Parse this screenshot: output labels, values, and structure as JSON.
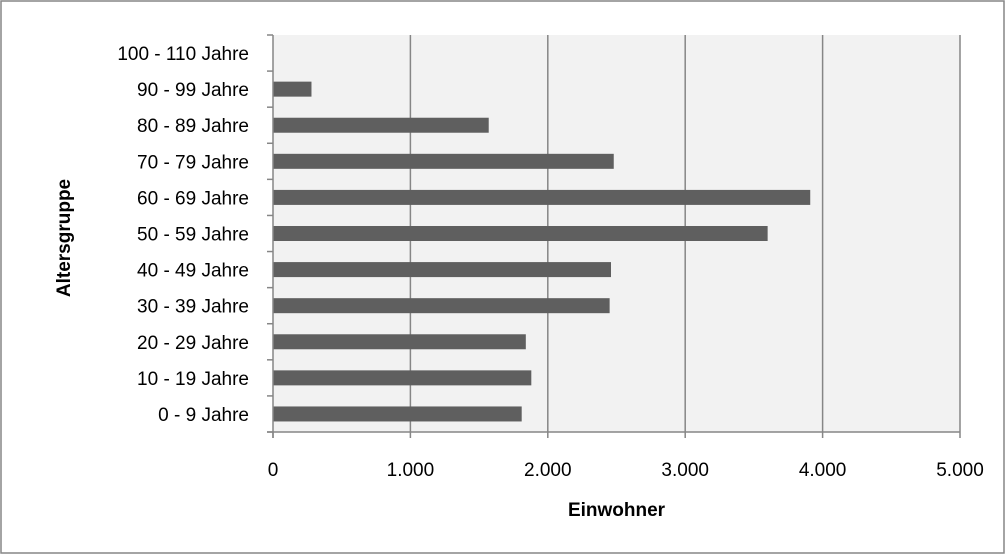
{
  "chart_data": {
    "type": "bar",
    "orientation": "horizontal",
    "categories": [
      "0 - 9 Jahre",
      "10 - 19 Jahre",
      "20 - 29 Jahre",
      "30 - 39 Jahre",
      "40 - 49 Jahre",
      "50 - 59 Jahre",
      "60 - 69 Jahre",
      "70 - 79 Jahre",
      "80 - 89 Jahre",
      "90 - 99 Jahre",
      "100 - 110 Jahre"
    ],
    "values": [
      1810,
      1880,
      1840,
      2450,
      2460,
      3600,
      3910,
      2480,
      1570,
      280,
      0
    ],
    "xlabel": "Einwohner",
    "ylabel": "Altersgruppe",
    "xlim": [
      0,
      5000
    ],
    "xticks": [
      0,
      1000,
      2000,
      3000,
      4000,
      5000
    ],
    "xtick_labels": [
      "0",
      "1.000",
      "2.000",
      "3.000",
      "4.000",
      "5.000"
    ],
    "grid": "vertical major gridlines",
    "legend": "none",
    "colors": {
      "bar": "#5f5f5f",
      "plot_background": "#f2f2f2",
      "gridline": "#868686",
      "frame": "#868686"
    }
  }
}
